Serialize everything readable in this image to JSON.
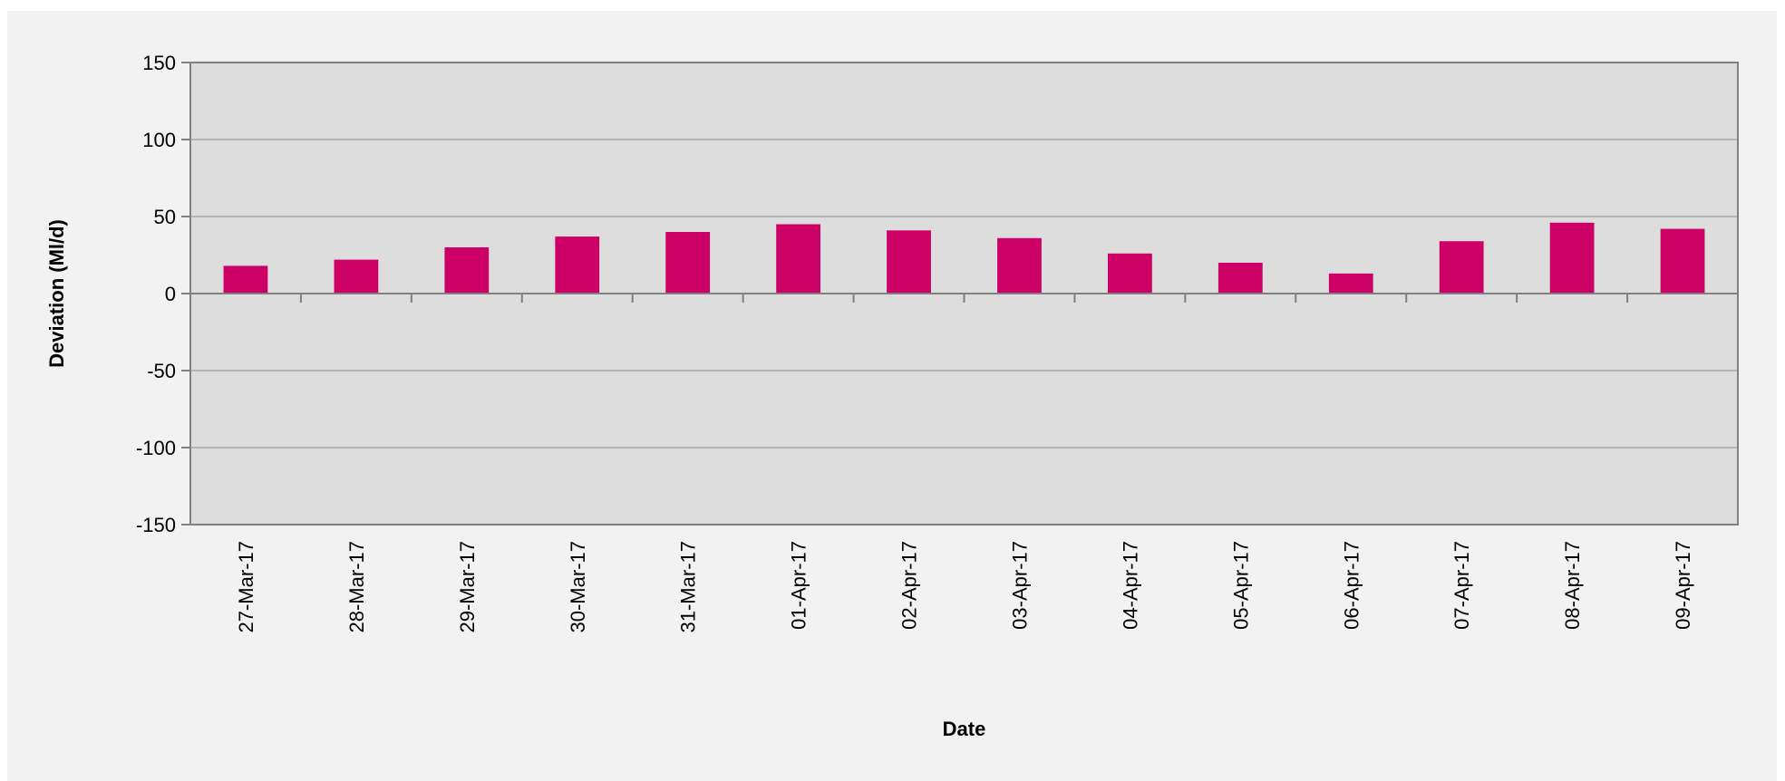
{
  "chart_data": {
    "type": "bar",
    "xlabel": "Date",
    "ylabel": "Deviation (Ml/d)",
    "ylim": [
      -150,
      150
    ],
    "yticks": [
      150,
      100,
      50,
      0,
      -50,
      -100,
      -150
    ],
    "grid": true,
    "legend": "none",
    "categories": [
      "27-Mar-17",
      "28-Mar-17",
      "29-Mar-17",
      "30-Mar-17",
      "31-Mar-17",
      "01-Apr-17",
      "02-Apr-17",
      "03-Apr-17",
      "04-Apr-17",
      "05-Apr-17",
      "06-Apr-17",
      "07-Apr-17",
      "08-Apr-17",
      "09-Apr-17"
    ],
    "values": [
      18,
      22,
      30,
      37,
      40,
      45,
      41,
      36,
      26,
      20,
      13,
      34,
      46,
      42
    ],
    "colors": {
      "bar": "#cc0066",
      "plot_background": "#dddddd",
      "page_background": "#f2f2f2",
      "grid": "#a6a6a6",
      "axis": "#808080"
    }
  }
}
